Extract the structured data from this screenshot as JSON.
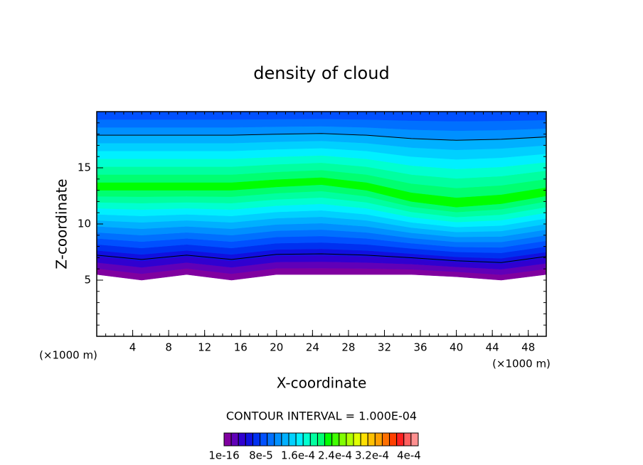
{
  "chart_data": {
    "type": "contour",
    "title": "density of cloud",
    "xlabel": "X-coordinate",
    "ylabel": "Z-coordinate",
    "x_unit_left": "(×1000 m)",
    "x_unit_right": "(×1000 m)",
    "contour_interval": "CONTOUR INTERVAL = 1.000E-04",
    "xlim": [
      0,
      50
    ],
    "xticks": [
      4,
      8,
      12,
      16,
      20,
      24,
      28,
      32,
      36,
      40,
      44,
      48
    ],
    "ylim": [
      0,
      20
    ],
    "yticks": [
      5,
      10,
      15
    ],
    "field": {
      "x": [
        0,
        5,
        10,
        15,
        20,
        25,
        30,
        35,
        40,
        45,
        50
      ],
      "base": [
        5.5,
        5,
        5.5,
        5,
        5.5,
        5.5,
        5.5,
        5.5,
        5.3,
        5,
        5.5
      ],
      "core": [
        13,
        13,
        13,
        13,
        13.3,
        13.5,
        13,
        12,
        11.5,
        11.8,
        12.5
      ]
    },
    "colors": [
      "#8000a0",
      "#6000b8",
      "#3000d0",
      "#1010e0",
      "#0030f0",
      "#0050ff",
      "#0070ff",
      "#0090ff",
      "#00b0ff",
      "#00d0ff",
      "#00f0ff",
      "#00ffd0",
      "#00ffa0",
      "#00ff70",
      "#00ff00",
      "#40ff00",
      "#80ff00",
      "#b0ff00",
      "#e0ff00",
      "#ffe000",
      "#ffc000",
      "#ffa000",
      "#ff7000",
      "#ff4000",
      "#ff2020",
      "#ff6060",
      "#ff9090"
    ],
    "colorbar_lim": [
      0,
      0.00042
    ],
    "colorbar_ticks": [
      {
        "value": 1e-16,
        "label": "1e-16"
      },
      {
        "value": 8e-05,
        "label": "8e-5"
      },
      {
        "value": 0.00016,
        "label": "1.6e-4"
      },
      {
        "value": 0.00024,
        "label": "2.4e-4"
      },
      {
        "value": 0.00032,
        "label": "3.2e-4"
      },
      {
        "value": 0.0004,
        "label": "4e-4"
      }
    ]
  }
}
